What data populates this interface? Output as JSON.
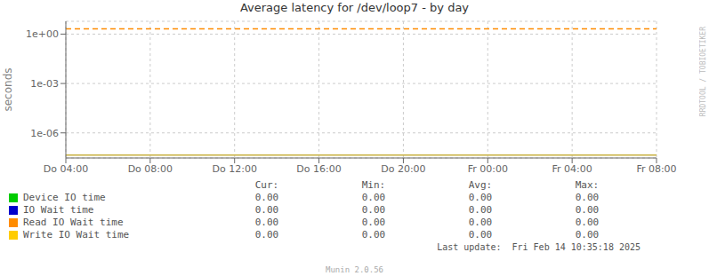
{
  "chart_data": {
    "type": "line",
    "title": "Average latency for /dev/loop7 - by day",
    "y_label": "seconds",
    "categories": [
      "Do 04:00",
      "Do 08:00",
      "Do 12:00",
      "Do 16:00",
      "Do 20:00",
      "Fr 00:00",
      "Fr 04:00",
      "Fr 08:00"
    ],
    "log": "y",
    "ylim": [
      3e-08,
      6.0
    ],
    "yticks": [
      {
        "value": 1e-06,
        "label": "1e-06"
      },
      {
        "value": 0.001,
        "label": "1e-03"
      },
      {
        "value": 1.0,
        "label": "1e+00"
      }
    ],
    "grid": true,
    "reference_lines": [
      {
        "value": 2.1,
        "color": "#ff8c00",
        "line_style": "dashed"
      },
      {
        "value": 4.5e-08,
        "color": "#c8b040",
        "line_style": "solid"
      }
    ],
    "legend_table": {
      "headers": [
        "Cur:",
        "Min:",
        "Avg:",
        "Max:"
      ],
      "rows": [
        {
          "name": "Device IO time",
          "color": "#00cc00",
          "values": [
            "0.00",
            "0.00",
            "0.00",
            "0.00"
          ]
        },
        {
          "name": "IO Wait time",
          "color": "#0000cc",
          "values": [
            "0.00",
            "0.00",
            "0.00",
            "0.00"
          ]
        },
        {
          "name": "Read IO Wait time",
          "color": "#ff8c00",
          "values": [
            "0.00",
            "0.00",
            "0.00",
            "0.00"
          ]
        },
        {
          "name": "Write IO Wait time",
          "color": "#ffcc00",
          "values": [
            "0.00",
            "0.00",
            "0.00",
            "0.00"
          ]
        }
      ]
    },
    "annotations": [
      "RRDTOOL / TOBIOETIKER",
      "Last update:  Fri Feb 14 10:35:18 2025",
      "Munin 2.0.56"
    ]
  }
}
